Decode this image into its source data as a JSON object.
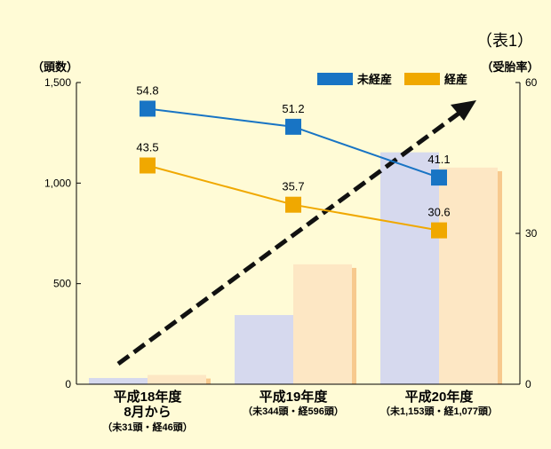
{
  "table_label": "（表1）",
  "chart_data": {
    "type": "bar+line",
    "categories": [
      {
        "line1": "平成18年度",
        "line2": "8月から",
        "line3": "（未31頭・経46頭）"
      },
      {
        "line1": "平成19年度",
        "line2": "",
        "line3": "（未344頭・経596頭）"
      },
      {
        "line1": "平成20年度",
        "line2": "",
        "line3": "（未1,153頭・経1,077頭）"
      }
    ],
    "left_axis": {
      "title": "（頭数）",
      "min": 0,
      "max": 1500,
      "ticks": [
        0,
        500,
        1000,
        1500
      ],
      "tick_labels": [
        "0",
        "500",
        "1,000",
        "1,500"
      ]
    },
    "right_axis": {
      "title": "（受胎率）",
      "min": 0,
      "max": 60,
      "ticks": [
        0,
        30,
        60
      ],
      "tick_labels": [
        "0",
        "30",
        "60"
      ]
    },
    "bar_series": [
      {
        "key": "未経産",
        "values": [
          31,
          344,
          1153
        ],
        "color": "#d6d9ee"
      },
      {
        "key": "経産",
        "values": [
          46,
          596,
          1077
        ],
        "color": "#fde7c4"
      }
    ],
    "line_series": [
      {
        "name": "未経産",
        "values": [
          54.8,
          51.2,
          41.1
        ],
        "labels": [
          "54.8",
          "51.2",
          "41.1"
        ],
        "color": "#1874c4"
      },
      {
        "name": "経産",
        "values": [
          43.5,
          35.7,
          30.6
        ],
        "labels": [
          "43.5",
          "35.7",
          "30.6"
        ],
        "color": "#f0a800"
      }
    ],
    "legend": {
      "placement": "top-right"
    },
    "trend_arrow": {
      "style": "dashed",
      "color": "#000000"
    }
  }
}
